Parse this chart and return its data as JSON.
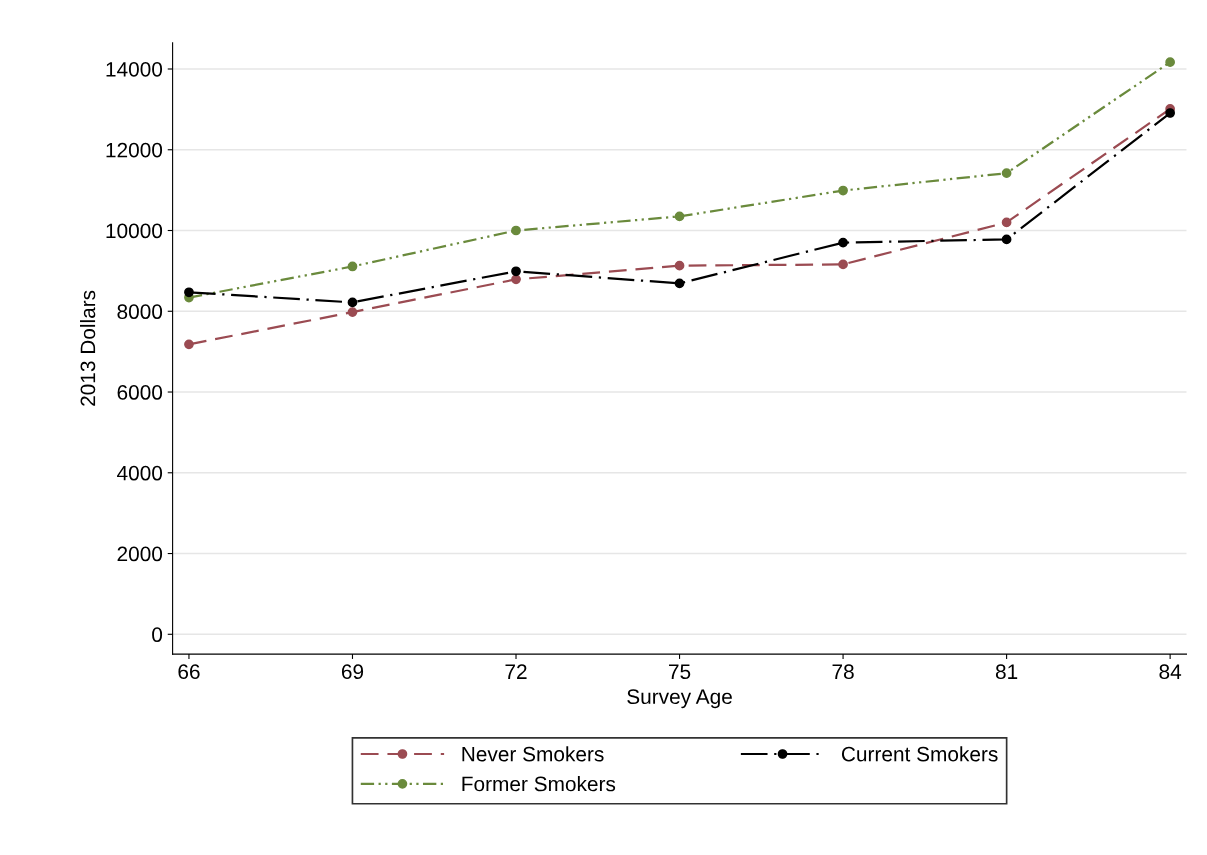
{
  "chart_data": {
    "type": "line",
    "xlabel": "Survey Age",
    "ylabel": "2013 Dollars",
    "x": [
      66,
      69,
      72,
      75,
      78,
      81,
      84
    ],
    "series": [
      {
        "name": "Never Smokers",
        "color": "#9b4b52",
        "line_style": "dashed",
        "values": [
          7180,
          7980,
          8790,
          9130,
          9160,
          10200,
          13010
        ]
      },
      {
        "name": "Former Smokers",
        "color": "#6a8a3c",
        "line_style": "dotted",
        "values": [
          8340,
          9110,
          10000,
          10350,
          10990,
          11420,
          14170
        ]
      },
      {
        "name": "Current Smokers",
        "color": "#000000",
        "line_style": "dashdot",
        "values": [
          8470,
          8220,
          8990,
          8690,
          9700,
          9780,
          12910
        ]
      }
    ],
    "xlim": [
      65.7,
      84.3
    ],
    "xticks": [
      66,
      69,
      72,
      75,
      78,
      81,
      84
    ],
    "ylim": [
      -490,
      14650
    ],
    "yticks": [
      0,
      2000,
      4000,
      6000,
      8000,
      10000,
      12000,
      14000
    ],
    "grid": "y",
    "legend": "bottom",
    "marker": "circle"
  }
}
